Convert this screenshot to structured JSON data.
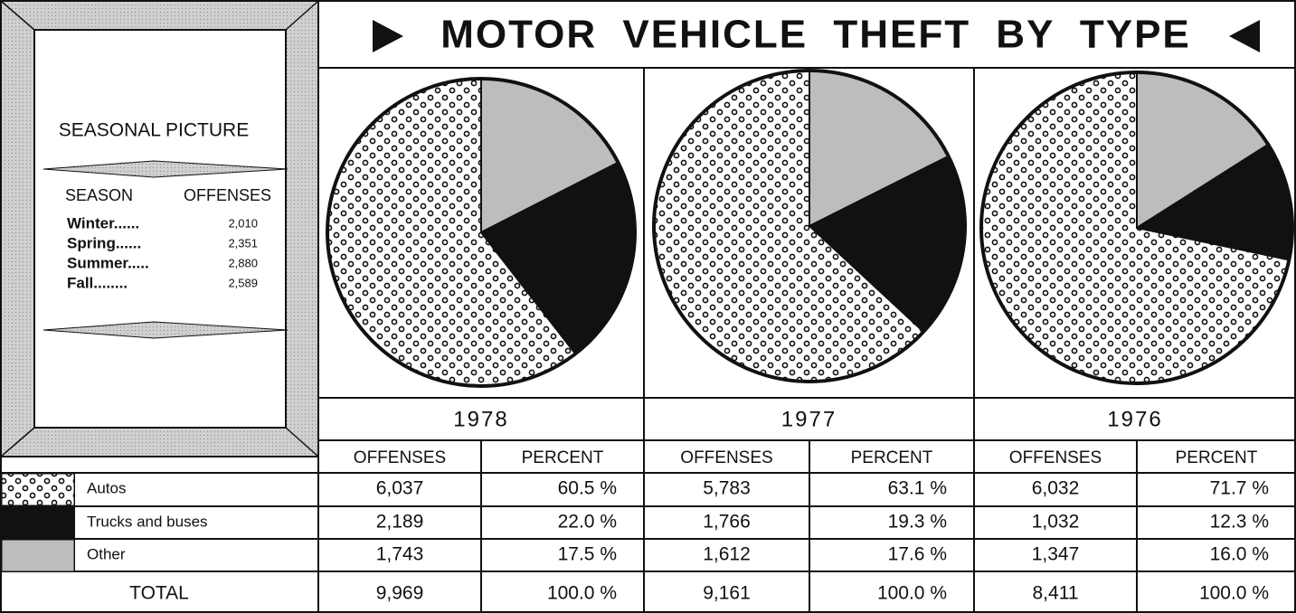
{
  "title": "MOTOR VEHICLE THEFT BY TYPE",
  "seasonal": {
    "title": "SEASONAL PICTURE",
    "headers": [
      "SEASON",
      "OFFENSES"
    ],
    "rows": [
      [
        "Winter......",
        "2,010"
      ],
      [
        "Spring......",
        "2,351"
      ],
      [
        "Summer.....",
        "2,880"
      ],
      [
        "Fall........",
        "2,589"
      ]
    ]
  },
  "table": {
    "headers": [
      "OFFENSES",
      "PERCENT"
    ],
    "categories": [
      "Autos",
      "Trucks and buses",
      "Other"
    ],
    "colors": [
      "dots",
      "#111111",
      "#bdbdbd"
    ],
    "total_label": "TOTAL"
  },
  "chart_data": [
    {
      "type": "pie",
      "title": "1978",
      "values": [
        60.5,
        22.0,
        17.5
      ],
      "value_labels": [
        "60.5 %",
        "22.0 %",
        "17.5 %"
      ],
      "offenses": [
        "6,037",
        "2,189",
        "1,743"
      ],
      "total_offenses": "9,969",
      "total_percent": "100.0 %"
    },
    {
      "type": "pie",
      "title": "1977",
      "values": [
        63.1,
        19.3,
        17.6
      ],
      "value_labels": [
        "63.1 %",
        "19.3 %",
        "17.6 %"
      ],
      "offenses": [
        "5,783",
        "1,766",
        "1,612"
      ],
      "total_offenses": "9,161",
      "total_percent": "100.0 %"
    },
    {
      "type": "pie",
      "title": "1976",
      "values": [
        71.7,
        12.3,
        16.0
      ],
      "value_labels": [
        "71.7 %",
        "12.3 %",
        "16.0 %"
      ],
      "offenses": [
        "6,032",
        "1,032",
        "1,347"
      ],
      "total_offenses": "8,411",
      "total_percent": "100.0 %"
    }
  ]
}
